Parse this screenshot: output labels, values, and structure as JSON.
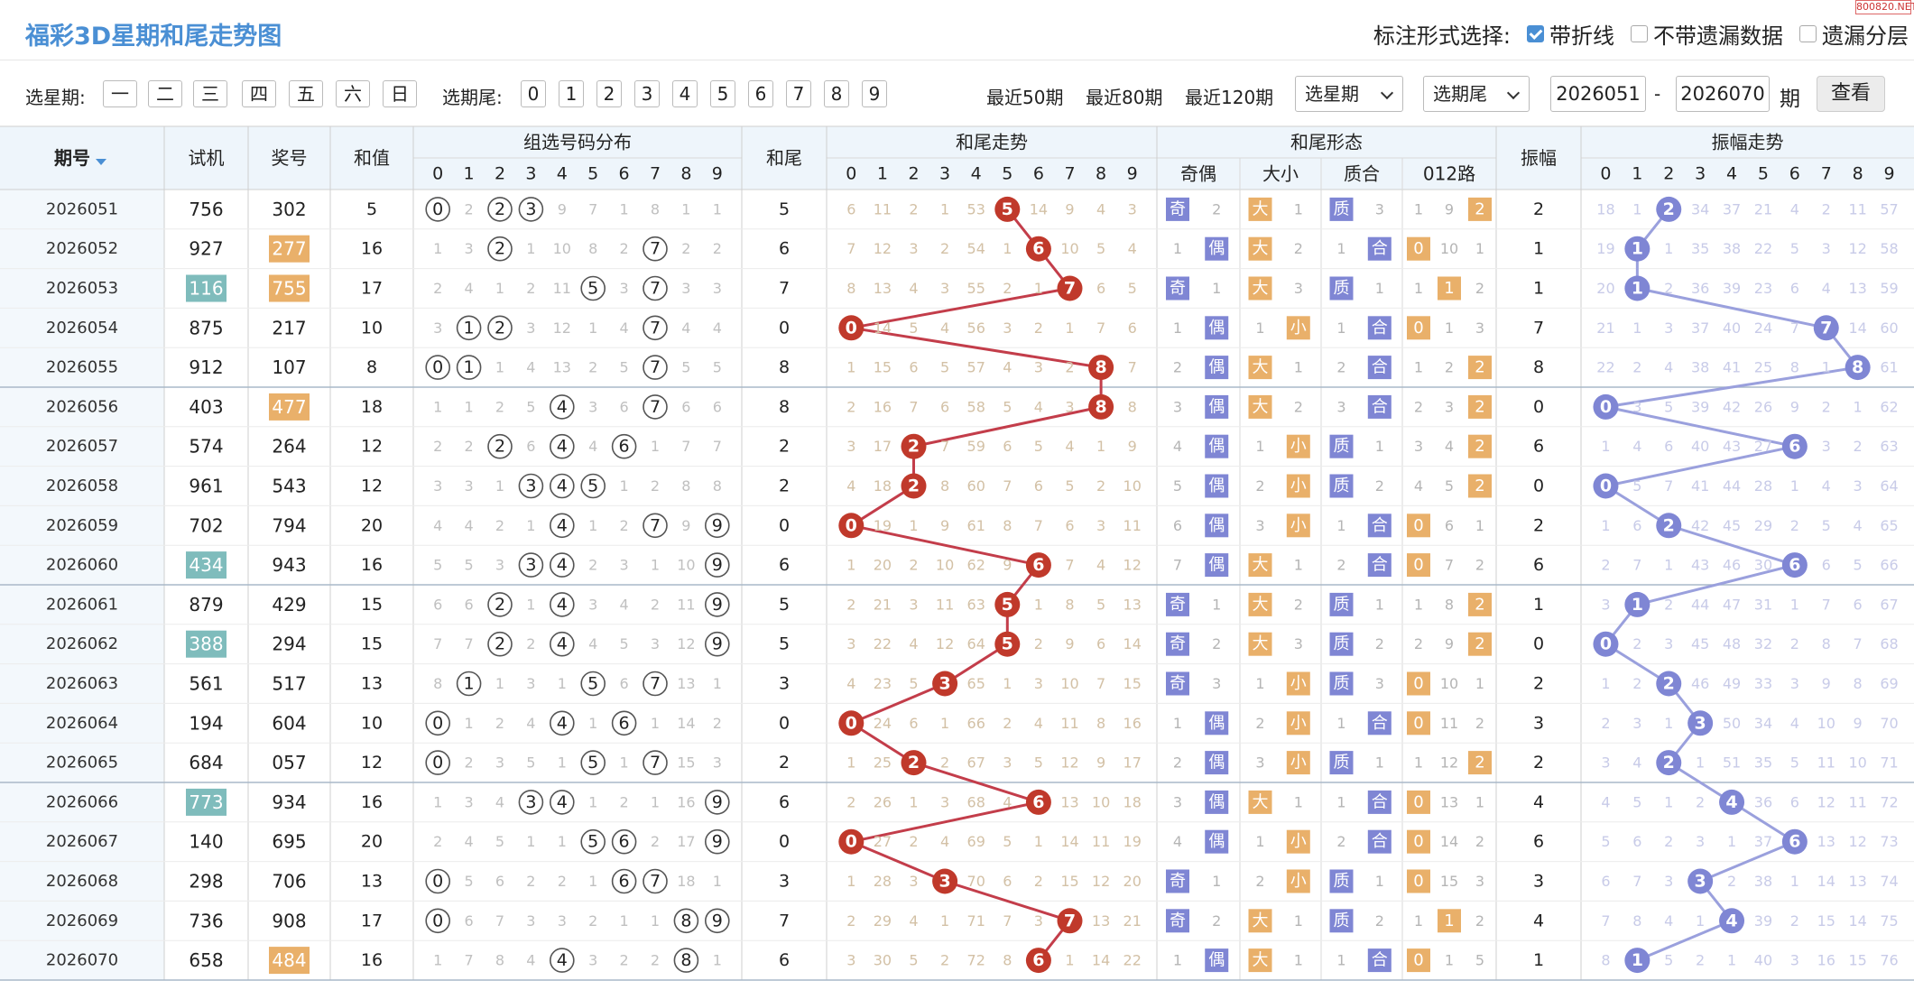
{
  "title": "福彩3D星期和尾走势图",
  "watermark": "800820.NET",
  "annotation": {
    "label": "标注形式选择:",
    "options": [
      {
        "label": "带折线",
        "checked": true
      },
      {
        "label": "不带遗漏数据",
        "checked": false
      },
      {
        "label": "遗漏分层",
        "checked": false
      }
    ]
  },
  "filter": {
    "weekday_label": "选星期:",
    "weekdays": [
      "一",
      "二",
      "三",
      "四",
      "五",
      "六",
      "日"
    ],
    "tail_label": "选期尾:",
    "tails": [
      "0",
      "1",
      "2",
      "3",
      "4",
      "5",
      "6",
      "7",
      "8",
      "9"
    ],
    "recent": [
      "最近50期",
      "最近80期",
      "最近120期"
    ],
    "weekday_select": "选星期",
    "tail_select": "选期尾",
    "from": "2026051",
    "dash": "-",
    "to": "2026070",
    "unit": "期",
    "query": "查看"
  },
  "headers": {
    "issue": "期号",
    "test": "试机",
    "prize": "奖号",
    "sum": "和值",
    "dist": "组选号码分布",
    "tail": "和尾",
    "trend": "和尾走势",
    "shape": "和尾形态",
    "oe": "奇偶",
    "bs": "大小",
    "pc": "质合",
    "r012": "012路",
    "amp": "振幅",
    "amp_trend": "振幅走势",
    "digits": [
      "0",
      "1",
      "2",
      "3",
      "4",
      "5",
      "6",
      "7",
      "8",
      "9"
    ]
  },
  "colors": {
    "red": "#c0392b",
    "blue": "#7f86d4",
    "orange": "#e9b06a",
    "teal": "#7fbcbc",
    "line_red": "#c33d4a",
    "line_blue": "#9aa0dd"
  },
  "rows": [
    {
      "issue": "2026051",
      "test": "756",
      "test_hl": false,
      "prize": "302",
      "prize_hl": false,
      "sum": "5",
      "dist": [
        "⓪",
        "2",
        "②",
        "③",
        "9",
        "7",
        "1",
        "8",
        "1",
        "1"
      ],
      "tail": "5",
      "trend": [
        "6",
        "11",
        "2",
        "1",
        "53",
        "5",
        "14",
        "9",
        "4",
        "3"
      ],
      "oe": [
        "奇",
        "2"
      ],
      "bs": [
        "大",
        "1"
      ],
      "pc": [
        "质",
        "3"
      ],
      "r012": [
        "1",
        "9",
        "2"
      ],
      "amp": "2",
      "amp_trend": [
        "18",
        "1",
        "2",
        "34",
        "37",
        "21",
        "4",
        "2",
        "11",
        "57"
      ]
    },
    {
      "issue": "2026052",
      "test": "927",
      "test_hl": false,
      "prize": "277",
      "prize_hl": true,
      "sum": "16",
      "dist": [
        "1",
        "3",
        "②",
        "1",
        "10",
        "8",
        "2",
        "⑦",
        "2",
        "2"
      ],
      "tail": "6",
      "trend": [
        "7",
        "12",
        "3",
        "2",
        "54",
        "1",
        "6",
        "10",
        "5",
        "4"
      ],
      "oe": [
        "1",
        "偶"
      ],
      "bs": [
        "大",
        "2"
      ],
      "pc": [
        "1",
        "合"
      ],
      "r012": [
        "0",
        "10",
        "1"
      ],
      "amp": "1",
      "amp_trend": [
        "19",
        "1",
        "1",
        "35",
        "38",
        "22",
        "5",
        "3",
        "12",
        "58"
      ]
    },
    {
      "issue": "2026053",
      "test": "116",
      "test_hl": true,
      "prize": "755",
      "prize_hl": true,
      "sum": "17",
      "dist": [
        "2",
        "4",
        "1",
        "2",
        "11",
        "⑤",
        "3",
        "⑦",
        "3",
        "3"
      ],
      "tail": "7",
      "trend": [
        "8",
        "13",
        "4",
        "3",
        "55",
        "2",
        "1",
        "7",
        "6",
        "5"
      ],
      "oe": [
        "奇",
        "1"
      ],
      "bs": [
        "大",
        "3"
      ],
      "pc": [
        "质",
        "1"
      ],
      "r012": [
        "1",
        "1",
        "2"
      ],
      "amp": "1",
      "amp_trend": [
        "20",
        "1",
        "2",
        "36",
        "39",
        "23",
        "6",
        "4",
        "13",
        "59"
      ]
    },
    {
      "issue": "2026054",
      "test": "875",
      "test_hl": false,
      "prize": "217",
      "prize_hl": false,
      "sum": "10",
      "dist": [
        "3",
        "①",
        "②",
        "3",
        "12",
        "1",
        "4",
        "⑦",
        "4",
        "4"
      ],
      "tail": "0",
      "trend": [
        "0",
        "14",
        "5",
        "4",
        "56",
        "3",
        "2",
        "1",
        "7",
        "6"
      ],
      "oe": [
        "1",
        "偶"
      ],
      "bs": [
        "1",
        "小"
      ],
      "pc": [
        "1",
        "合"
      ],
      "r012": [
        "0",
        "1",
        "3"
      ],
      "amp": "7",
      "amp_trend": [
        "21",
        "1",
        "3",
        "37",
        "40",
        "24",
        "7",
        "7",
        "14",
        "60"
      ]
    },
    {
      "issue": "2026055",
      "test": "912",
      "test_hl": false,
      "prize": "107",
      "prize_hl": false,
      "sum": "8",
      "dist": [
        "⓪",
        "①",
        "1",
        "4",
        "13",
        "2",
        "5",
        "⑦",
        "5",
        "5"
      ],
      "tail": "8",
      "trend": [
        "1",
        "15",
        "6",
        "5",
        "57",
        "4",
        "3",
        "2",
        "8",
        "7"
      ],
      "oe": [
        "2",
        "偶"
      ],
      "bs": [
        "大",
        "1"
      ],
      "pc": [
        "2",
        "合"
      ],
      "r012": [
        "1",
        "2",
        "2"
      ],
      "amp": "8",
      "amp_trend": [
        "22",
        "2",
        "4",
        "38",
        "41",
        "25",
        "8",
        "1",
        "8",
        "61"
      ]
    },
    {
      "issue": "2026056",
      "test": "403",
      "test_hl": false,
      "prize": "477",
      "prize_hl": true,
      "sum": "18",
      "dist": [
        "1",
        "1",
        "2",
        "5",
        "④",
        "3",
        "6",
        "⑦",
        "6",
        "6"
      ],
      "tail": "8",
      "trend": [
        "2",
        "16",
        "7",
        "6",
        "58",
        "5",
        "4",
        "3",
        "8",
        "8"
      ],
      "oe": [
        "3",
        "偶"
      ],
      "bs": [
        "大",
        "2"
      ],
      "pc": [
        "3",
        "合"
      ],
      "r012": [
        "2",
        "3",
        "2"
      ],
      "amp": "0",
      "amp_trend": [
        "0",
        "3",
        "5",
        "39",
        "42",
        "26",
        "9",
        "2",
        "1",
        "62"
      ]
    },
    {
      "issue": "2026057",
      "test": "574",
      "test_hl": false,
      "prize": "264",
      "prize_hl": false,
      "sum": "12",
      "dist": [
        "2",
        "2",
        "②",
        "6",
        "④",
        "4",
        "⑥",
        "1",
        "7",
        "7"
      ],
      "tail": "2",
      "trend": [
        "3",
        "17",
        "2",
        "7",
        "59",
        "6",
        "5",
        "4",
        "1",
        "9"
      ],
      "oe": [
        "4",
        "偶"
      ],
      "bs": [
        "1",
        "小"
      ],
      "pc": [
        "质",
        "1"
      ],
      "r012": [
        "3",
        "4",
        "2"
      ],
      "amp": "6",
      "amp_trend": [
        "1",
        "4",
        "6",
        "40",
        "43",
        "27",
        "6",
        "3",
        "2",
        "63"
      ]
    },
    {
      "issue": "2026058",
      "test": "961",
      "test_hl": false,
      "prize": "543",
      "prize_hl": false,
      "sum": "12",
      "dist": [
        "3",
        "3",
        "1",
        "③",
        "④",
        "⑤",
        "1",
        "2",
        "8",
        "8"
      ],
      "tail": "2",
      "trend": [
        "4",
        "18",
        "2",
        "8",
        "60",
        "7",
        "6",
        "5",
        "2",
        "10"
      ],
      "oe": [
        "5",
        "偶"
      ],
      "bs": [
        "2",
        "小"
      ],
      "pc": [
        "质",
        "2"
      ],
      "r012": [
        "4",
        "5",
        "2"
      ],
      "amp": "0",
      "amp_trend": [
        "0",
        "5",
        "7",
        "41",
        "44",
        "28",
        "1",
        "4",
        "3",
        "64"
      ]
    },
    {
      "issue": "2026059",
      "test": "702",
      "test_hl": false,
      "prize": "794",
      "prize_hl": false,
      "sum": "20",
      "dist": [
        "4",
        "4",
        "2",
        "1",
        "④",
        "1",
        "2",
        "⑦",
        "9",
        "⑨"
      ],
      "tail": "0",
      "trend": [
        "0",
        "19",
        "1",
        "9",
        "61",
        "8",
        "7",
        "6",
        "3",
        "11"
      ],
      "oe": [
        "6",
        "偶"
      ],
      "bs": [
        "3",
        "小"
      ],
      "pc": [
        "1",
        "合"
      ],
      "r012": [
        "0",
        "6",
        "1"
      ],
      "amp": "2",
      "amp_trend": [
        "1",
        "6",
        "2",
        "42",
        "45",
        "29",
        "2",
        "5",
        "4",
        "65"
      ]
    },
    {
      "issue": "2026060",
      "test": "434",
      "test_hl": true,
      "prize": "943",
      "prize_hl": false,
      "sum": "16",
      "dist": [
        "5",
        "5",
        "3",
        "③",
        "④",
        "2",
        "3",
        "1",
        "10",
        "⑨"
      ],
      "tail": "6",
      "trend": [
        "1",
        "20",
        "2",
        "10",
        "62",
        "9",
        "6",
        "7",
        "4",
        "12"
      ],
      "oe": [
        "7",
        "偶"
      ],
      "bs": [
        "大",
        "1"
      ],
      "pc": [
        "2",
        "合"
      ],
      "r012": [
        "0",
        "7",
        "2"
      ],
      "amp": "6",
      "amp_trend": [
        "2",
        "7",
        "1",
        "43",
        "46",
        "30",
        "6",
        "6",
        "5",
        "66"
      ]
    },
    {
      "issue": "2026061",
      "test": "879",
      "test_hl": false,
      "prize": "429",
      "prize_hl": false,
      "sum": "15",
      "dist": [
        "6",
        "6",
        "②",
        "1",
        "④",
        "3",
        "4",
        "2",
        "11",
        "⑨"
      ],
      "tail": "5",
      "trend": [
        "2",
        "21",
        "3",
        "11",
        "63",
        "5",
        "1",
        "8",
        "5",
        "13"
      ],
      "oe": [
        "奇",
        "1"
      ],
      "bs": [
        "大",
        "2"
      ],
      "pc": [
        "质",
        "1"
      ],
      "r012": [
        "1",
        "8",
        "2"
      ],
      "amp": "1",
      "amp_trend": [
        "3",
        "1",
        "2",
        "44",
        "47",
        "31",
        "1",
        "7",
        "6",
        "67"
      ]
    },
    {
      "issue": "2026062",
      "test": "388",
      "test_hl": true,
      "prize": "294",
      "prize_hl": false,
      "sum": "15",
      "dist": [
        "7",
        "7",
        "②",
        "2",
        "④",
        "4",
        "5",
        "3",
        "12",
        "⑨"
      ],
      "tail": "5",
      "trend": [
        "3",
        "22",
        "4",
        "12",
        "64",
        "5",
        "2",
        "9",
        "6",
        "14"
      ],
      "oe": [
        "奇",
        "2"
      ],
      "bs": [
        "大",
        "3"
      ],
      "pc": [
        "质",
        "2"
      ],
      "r012": [
        "2",
        "9",
        "2"
      ],
      "amp": "0",
      "amp_trend": [
        "0",
        "2",
        "3",
        "45",
        "48",
        "32",
        "2",
        "8",
        "7",
        "68"
      ]
    },
    {
      "issue": "2026063",
      "test": "561",
      "test_hl": false,
      "prize": "517",
      "prize_hl": false,
      "sum": "13",
      "dist": [
        "8",
        "①",
        "1",
        "3",
        "1",
        "⑤",
        "6",
        "⑦",
        "13",
        "1"
      ],
      "tail": "3",
      "trend": [
        "4",
        "23",
        "5",
        "3",
        "65",
        "1",
        "3",
        "10",
        "7",
        "15"
      ],
      "oe": [
        "奇",
        "3"
      ],
      "bs": [
        "1",
        "小"
      ],
      "pc": [
        "质",
        "3"
      ],
      "r012": [
        "0",
        "10",
        "1"
      ],
      "amp": "2",
      "amp_trend": [
        "1",
        "2",
        "2",
        "46",
        "49",
        "33",
        "3",
        "9",
        "8",
        "69"
      ]
    },
    {
      "issue": "2026064",
      "test": "194",
      "test_hl": false,
      "prize": "604",
      "prize_hl": false,
      "sum": "10",
      "dist": [
        "⓪",
        "1",
        "2",
        "4",
        "④",
        "1",
        "⑥",
        "1",
        "14",
        "2"
      ],
      "tail": "0",
      "trend": [
        "0",
        "24",
        "6",
        "1",
        "66",
        "2",
        "4",
        "11",
        "8",
        "16"
      ],
      "oe": [
        "1",
        "偶"
      ],
      "bs": [
        "2",
        "小"
      ],
      "pc": [
        "1",
        "合"
      ],
      "r012": [
        "0",
        "11",
        "2"
      ],
      "amp": "3",
      "amp_trend": [
        "2",
        "3",
        "1",
        "3",
        "50",
        "34",
        "4",
        "10",
        "9",
        "70"
      ]
    },
    {
      "issue": "2026065",
      "test": "684",
      "test_hl": false,
      "prize": "057",
      "prize_hl": false,
      "sum": "12",
      "dist": [
        "⓪",
        "2",
        "3",
        "5",
        "1",
        "⑤",
        "1",
        "⑦",
        "15",
        "3"
      ],
      "tail": "2",
      "trend": [
        "1",
        "25",
        "2",
        "2",
        "67",
        "3",
        "5",
        "12",
        "9",
        "17"
      ],
      "oe": [
        "2",
        "偶"
      ],
      "bs": [
        "3",
        "小"
      ],
      "pc": [
        "质",
        "1"
      ],
      "r012": [
        "1",
        "12",
        "2"
      ],
      "amp": "2",
      "amp_trend": [
        "3",
        "4",
        "2",
        "1",
        "51",
        "35",
        "5",
        "11",
        "10",
        "71"
      ]
    },
    {
      "issue": "2026066",
      "test": "773",
      "test_hl": true,
      "prize": "934",
      "prize_hl": false,
      "sum": "16",
      "dist": [
        "1",
        "3",
        "4",
        "③",
        "④",
        "1",
        "2",
        "1",
        "16",
        "⑨"
      ],
      "tail": "6",
      "trend": [
        "2",
        "26",
        "1",
        "3",
        "68",
        "4",
        "6",
        "13",
        "10",
        "18"
      ],
      "oe": [
        "3",
        "偶"
      ],
      "bs": [
        "大",
        "1"
      ],
      "pc": [
        "1",
        "合"
      ],
      "r012": [
        "0",
        "13",
        "1"
      ],
      "amp": "4",
      "amp_trend": [
        "4",
        "5",
        "1",
        "2",
        "4",
        "36",
        "6",
        "12",
        "11",
        "72"
      ]
    },
    {
      "issue": "2026067",
      "test": "140",
      "test_hl": false,
      "prize": "695",
      "prize_hl": false,
      "sum": "20",
      "dist": [
        "2",
        "4",
        "5",
        "1",
        "1",
        "⑤",
        "⑥",
        "2",
        "17",
        "⑨"
      ],
      "tail": "0",
      "trend": [
        "0",
        "27",
        "2",
        "4",
        "69",
        "5",
        "1",
        "14",
        "11",
        "19"
      ],
      "oe": [
        "4",
        "偶"
      ],
      "bs": [
        "1",
        "小"
      ],
      "pc": [
        "2",
        "合"
      ],
      "r012": [
        "0",
        "14",
        "2"
      ],
      "amp": "6",
      "amp_trend": [
        "5",
        "6",
        "2",
        "3",
        "1",
        "37",
        "6",
        "13",
        "12",
        "73"
      ]
    },
    {
      "issue": "2026068",
      "test": "298",
      "test_hl": false,
      "prize": "706",
      "prize_hl": false,
      "sum": "13",
      "dist": [
        "⓪",
        "5",
        "6",
        "2",
        "2",
        "1",
        "⑥",
        "⑦",
        "18",
        "1"
      ],
      "tail": "3",
      "trend": [
        "1",
        "28",
        "3",
        "3",
        "70",
        "6",
        "2",
        "15",
        "12",
        "20"
      ],
      "oe": [
        "奇",
        "1"
      ],
      "bs": [
        "2",
        "小"
      ],
      "pc": [
        "质",
        "1"
      ],
      "r012": [
        "0",
        "15",
        "3"
      ],
      "amp": "3",
      "amp_trend": [
        "6",
        "7",
        "3",
        "3",
        "2",
        "38",
        "1",
        "14",
        "13",
        "74"
      ]
    },
    {
      "issue": "2026069",
      "test": "736",
      "test_hl": false,
      "prize": "908",
      "prize_hl": false,
      "sum": "17",
      "dist": [
        "⓪",
        "6",
        "7",
        "3",
        "3",
        "2",
        "1",
        "1",
        "⑧",
        "⑨"
      ],
      "tail": "7",
      "trend": [
        "2",
        "29",
        "4",
        "1",
        "71",
        "7",
        "3",
        "7",
        "13",
        "21"
      ],
      "oe": [
        "奇",
        "2"
      ],
      "bs": [
        "大",
        "1"
      ],
      "pc": [
        "质",
        "2"
      ],
      "r012": [
        "1",
        "1",
        "2"
      ],
      "amp": "4",
      "amp_trend": [
        "7",
        "8",
        "4",
        "1",
        "4",
        "39",
        "2",
        "15",
        "14",
        "75"
      ]
    },
    {
      "issue": "2026070",
      "test": "658",
      "test_hl": false,
      "prize": "484",
      "prize_hl": true,
      "sum": "16",
      "dist": [
        "1",
        "7",
        "8",
        "4",
        "④",
        "3",
        "2",
        "2",
        "⑧",
        "1"
      ],
      "tail": "6",
      "trend": [
        "3",
        "30",
        "5",
        "2",
        "72",
        "8",
        "6",
        "1",
        "14",
        "22"
      ],
      "oe": [
        "1",
        "偶"
      ],
      "bs": [
        "大",
        "1"
      ],
      "pc": [
        "1",
        "合"
      ],
      "r012": [
        "0",
        "1",
        "5"
      ],
      "amp": "1",
      "amp_trend": [
        "8",
        "1",
        "5",
        "2",
        "1",
        "40",
        "3",
        "16",
        "15",
        "76"
      ]
    }
  ]
}
